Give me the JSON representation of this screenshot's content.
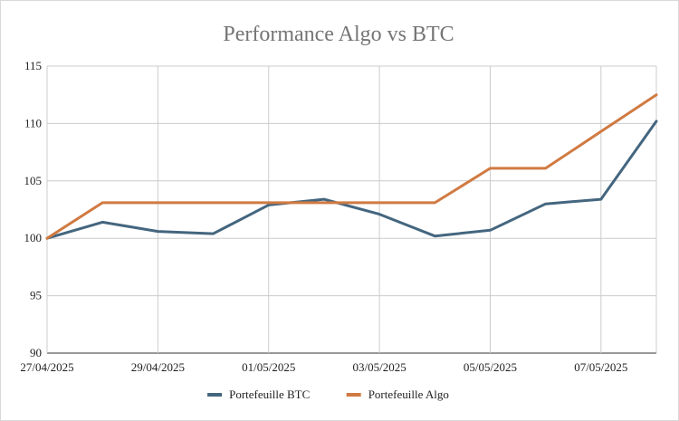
{
  "chart_data": {
    "type": "line",
    "title": "Performance Algo vs BTC",
    "xlabel": "",
    "ylabel": "",
    "x": [
      "27/04/2025",
      "28/04/2025",
      "29/04/2025",
      "30/04/2025",
      "01/05/2025",
      "02/05/2025",
      "03/05/2025",
      "04/05/2025",
      "05/05/2025",
      "06/05/2025",
      "07/05/2025",
      "08/05/2025"
    ],
    "x_tick_labels": [
      "27/04/2025",
      "29/04/2025",
      "01/05/2025",
      "03/05/2025",
      "05/05/2025",
      "07/05/2025"
    ],
    "ylim": [
      90,
      115
    ],
    "y_ticks": [
      "90",
      "95",
      "100",
      "105",
      "110",
      "115"
    ],
    "grid": true,
    "legend_position": "bottom",
    "series": [
      {
        "name": "Portefeuille BTC",
        "color": "#44667f",
        "values": [
          100,
          101.4,
          100.6,
          100.4,
          102.9,
          103.4,
          102.1,
          100.2,
          100.7,
          103.0,
          103.4,
          110.2
        ]
      },
      {
        "name": "Portefeuille Algo",
        "color": "#d07a42",
        "values": [
          100,
          103.1,
          103.1,
          103.1,
          103.1,
          103.1,
          103.1,
          103.1,
          106.1,
          106.1,
          109.3,
          112.5
        ]
      }
    ]
  }
}
